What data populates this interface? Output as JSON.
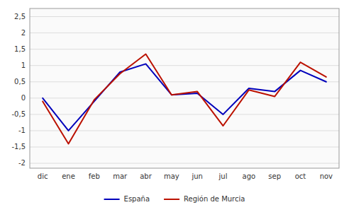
{
  "chart_data": {
    "type": "line",
    "categories": [
      "dic",
      "ene",
      "feb",
      "mar",
      "abr",
      "may",
      "jun",
      "jul",
      "ago",
      "sep",
      "oct",
      "nov"
    ],
    "series": [
      {
        "name": "España",
        "color": "#0000bb",
        "values": [
          0.0,
          -1.0,
          -0.1,
          0.8,
          1.05,
          0.1,
          0.15,
          -0.5,
          0.3,
          0.2,
          0.85,
          0.5
        ]
      },
      {
        "name": "Región de Murcia",
        "color": "#bb1100",
        "values": [
          -0.1,
          -1.4,
          -0.05,
          0.75,
          1.35,
          0.1,
          0.2,
          -0.85,
          0.25,
          0.05,
          1.1,
          0.65
        ]
      }
    ],
    "ylim": [
      -2.15,
      2.75
    ],
    "yticks": [
      -2,
      {
        "value": -1.5,
        "label": "-1,5"
      },
      -1,
      {
        "value": -0.5,
        "label": "-0,5"
      },
      0,
      {
        "value": 0.5,
        "label": "0,5"
      },
      1,
      {
        "value": 1.5,
        "label": "1,5"
      },
      2,
      {
        "value": 2.5,
        "label": "2,5"
      }
    ],
    "grid": true,
    "legend": "bottom"
  }
}
